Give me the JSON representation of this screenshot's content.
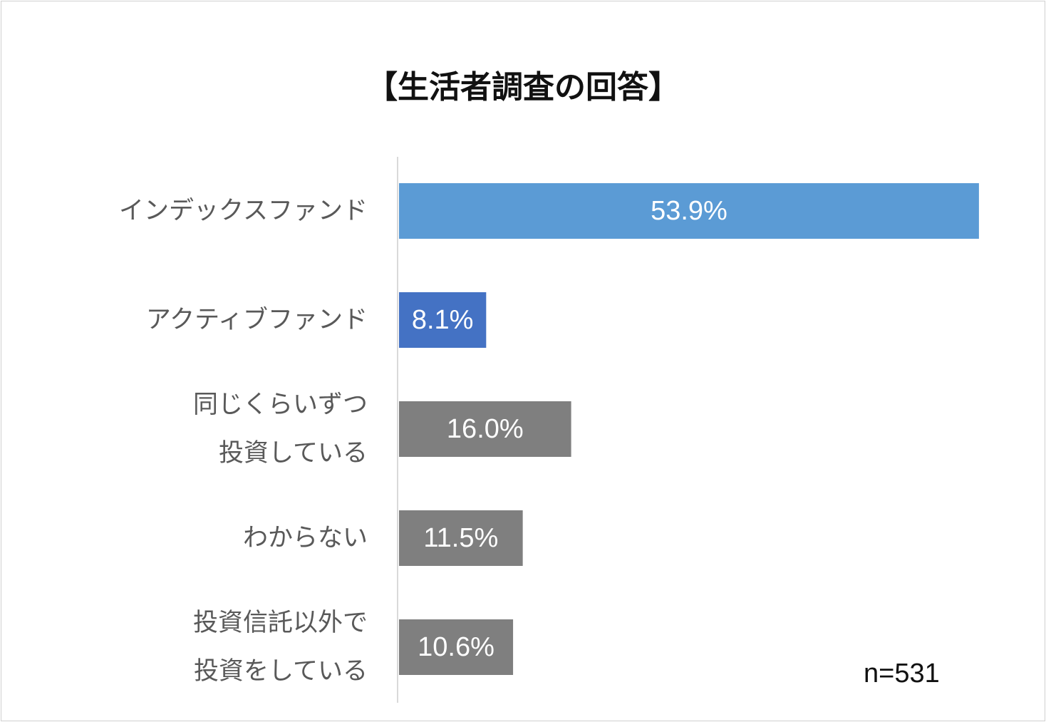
{
  "chart_data": {
    "type": "bar",
    "orientation": "horizontal",
    "title": "【生活者調査の回答】",
    "categories": [
      [
        "インデックスファンド"
      ],
      [
        "アクティブファンド"
      ],
      [
        "同じくらいずつ",
        "投資している"
      ],
      [
        "わからない"
      ],
      [
        "投資信託以外で",
        "投資をしている"
      ]
    ],
    "values": [
      53.9,
      8.1,
      16.0,
      11.5,
      10.6
    ],
    "data_labels": [
      "53.9%",
      "8.1%",
      "16.0%",
      "11.5%",
      "10.6%"
    ],
    "colors": [
      "#5b9bd5",
      "#4472c4",
      "#7f7f7f",
      "#7f7f7f",
      "#7f7f7f"
    ],
    "xlim": [
      0,
      54
    ],
    "grid": false,
    "legend": "none",
    "note": "n=531"
  }
}
